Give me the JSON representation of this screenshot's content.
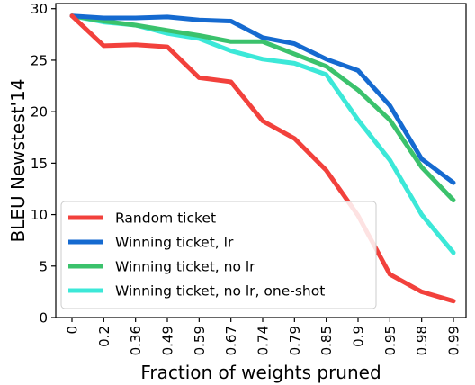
{
  "chart_data": {
    "type": "line",
    "xlabel": "Fraction of weights pruned",
    "ylabel": "BLEU Newstest'14",
    "categories": [
      "0",
      "0.2",
      "0.36",
      "0.49",
      "0.59",
      "0.67",
      "0.74",
      "0.79",
      "0.85",
      "0.9",
      "0.95",
      "0.98",
      "0.99"
    ],
    "yticks": [
      "0",
      "5",
      "10",
      "15",
      "20",
      "25",
      "30"
    ],
    "ylim": [
      0,
      30.5
    ],
    "grid": false,
    "legend_position": "lower-left",
    "series": [
      {
        "name": "Random ticket",
        "color": "#f2413c",
        "values": [
          29.3,
          26.4,
          26.5,
          26.3,
          23.3,
          22.9,
          19.1,
          17.4,
          14.3,
          9.9,
          4.2,
          2.5,
          1.6
        ]
      },
      {
        "name": "Winning ticket, lr",
        "color": "#156ad0",
        "values": [
          29.3,
          29.1,
          29.1,
          29.2,
          28.9,
          28.8,
          27.2,
          26.6,
          25.1,
          24.0,
          20.6,
          15.4,
          13.1
        ]
      },
      {
        "name": "Winning ticket, no lr",
        "color": "#3bc26c",
        "values": [
          29.3,
          28.8,
          28.4,
          27.9,
          27.4,
          26.8,
          26.8,
          25.6,
          24.4,
          22.1,
          19.2,
          14.6,
          11.4
        ]
      },
      {
        "name": "Winning ticket, no lr, one-shot",
        "color": "#3ce8d8",
        "values": [
          29.3,
          28.7,
          28.4,
          27.6,
          27.1,
          25.9,
          25.1,
          24.7,
          23.6,
          19.2,
          15.3,
          10.0,
          6.3
        ]
      }
    ]
  }
}
